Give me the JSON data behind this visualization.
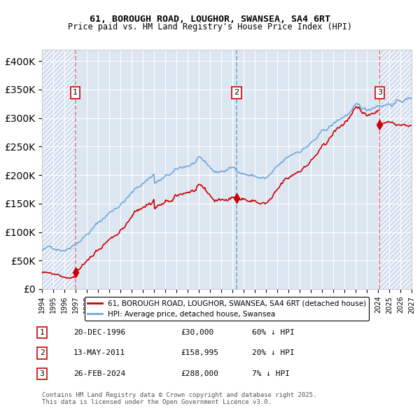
{
  "title": "61, BOROUGH ROAD, LOUGHOR, SWANSEA, SA4 6RT",
  "subtitle": "Price paid vs. HM Land Registry's House Price Index (HPI)",
  "ylabel": "",
  "xlim": [
    1994.0,
    2027.0
  ],
  "ylim": [
    0,
    420000
  ],
  "yticks": [
    0,
    50000,
    100000,
    150000,
    200000,
    250000,
    300000,
    350000,
    400000
  ],
  "ytick_labels": [
    "£0",
    "£50K",
    "£100K",
    "£150K",
    "£200K",
    "£250K",
    "£300K",
    "£350K",
    "£400K"
  ],
  "sale_dates": [
    1996.97,
    2011.37,
    2024.15
  ],
  "sale_prices": [
    30000,
    158995,
    288000
  ],
  "sale_labels": [
    "1",
    "2",
    "3"
  ],
  "hpi_color": "#6fa8dc",
  "price_color": "#cc0000",
  "sale_marker_color": "#cc0000",
  "bg_color": "#dce6f1",
  "hatch_color": "#c0d0e8",
  "legend_label_price": "61, BOROUGH ROAD, LOUGHOR, SWANSEA, SA4 6RT (detached house)",
  "legend_label_hpi": "HPI: Average price, detached house, Swansea",
  "table_rows": [
    [
      "1",
      "20-DEC-1996",
      "£30,000",
      "60% ↓ HPI"
    ],
    [
      "2",
      "13-MAY-2011",
      "£158,995",
      "20% ↓ HPI"
    ],
    [
      "3",
      "26-FEB-2024",
      "£288,000",
      "7% ↓ HPI"
    ]
  ],
  "footnote": "Contains HM Land Registry data © Crown copyright and database right 2025.\nThis data is licensed under the Open Government Licence v3.0.",
  "grid_color": "#ffffff",
  "dashed_vline_color": "#7ba7cc"
}
